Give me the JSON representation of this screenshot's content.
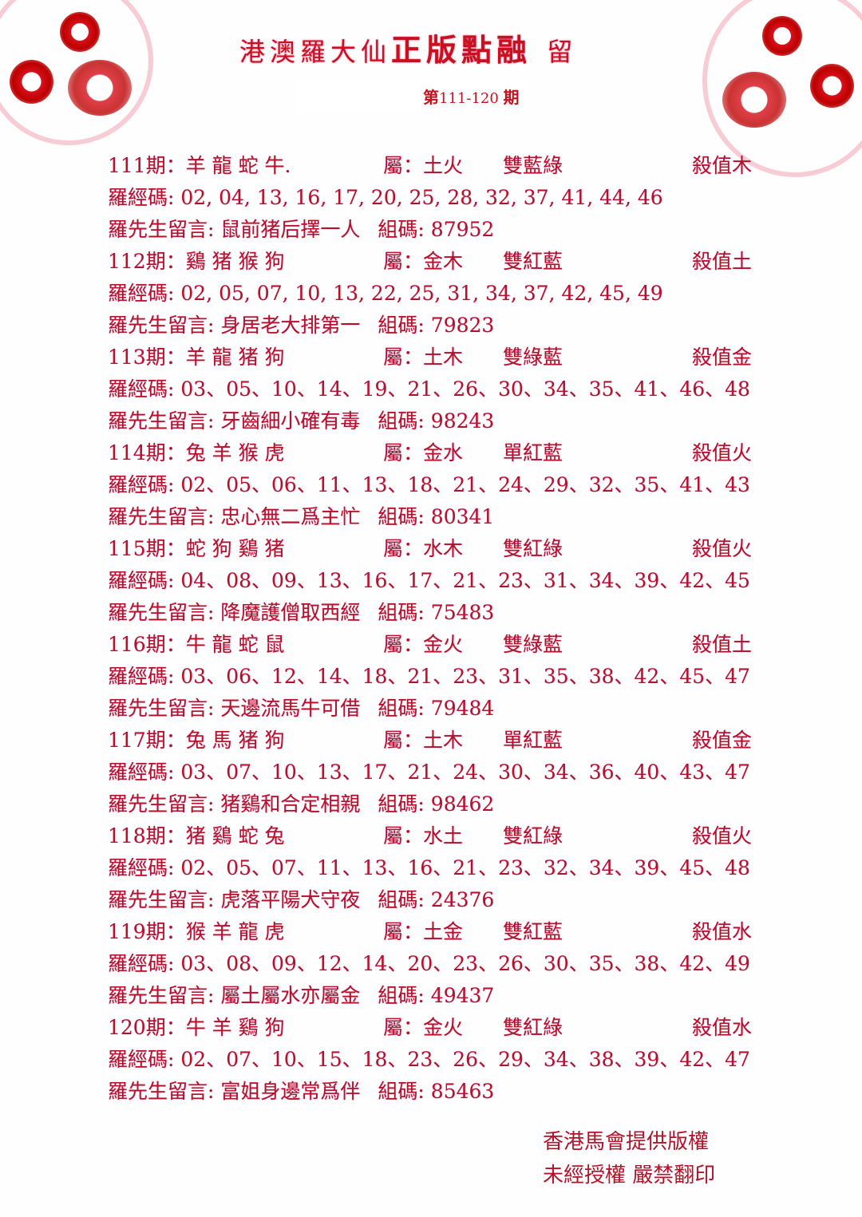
{
  "header": {
    "title_part1": "港澳羅大仙",
    "title_part2": "正版點融",
    "title_part3": "留",
    "issue_prefix": "第",
    "issue_range": "111-120",
    "issue_suffix": "期"
  },
  "labels": {
    "attr": "屬：",
    "codes": "羅經碼:",
    "message": "羅先生留言:",
    "combo": "組碼:"
  },
  "entries": [
    {
      "period": "111期：",
      "zodiacs": "羊 龍 蛇 牛.",
      "attr": "土火",
      "color": "雙藍綠",
      "kill": "殺值木",
      "codes": "02, 04, 13, 16, 17, 20, 25, 28, 32, 37, 41, 44, 46",
      "message": "鼠前猪后擇一人",
      "combo": "87952"
    },
    {
      "period": "112期：",
      "zodiacs": "鷄 猪 猴 狗",
      "attr": "金木",
      "color": "雙紅藍",
      "kill": "殺值土",
      "codes": "02, 05, 07, 10, 13, 22, 25, 31, 34, 37, 42, 45, 49",
      "message": "身居老大排第一",
      "combo": "79823"
    },
    {
      "period": "113期：",
      "zodiacs": "羊 龍 猪 狗",
      "attr": "土木",
      "color": "雙綠藍",
      "kill": "殺值金",
      "codes": "03、05、10、14、19、21、26、30、34、35、41、46、48",
      "message": "牙齒細小確有毒",
      "combo": "98243"
    },
    {
      "period": "114期：",
      "zodiacs": "兔 羊 猴 虎",
      "attr": "金水",
      "color": "單紅藍",
      "kill": "殺值火",
      "codes": "02、05、06、11、13、18、21、24、29、32、35、41、43",
      "message": "忠心無二爲主忙",
      "combo": "80341"
    },
    {
      "period": "115期：",
      "zodiacs": "蛇 狗 鷄 猪",
      "attr": "水木",
      "color": "雙紅綠",
      "kill": "殺值火",
      "codes": "04、08、09、13、16、17、21、23、31、34、39、42、45",
      "message": "降魔護僧取西經",
      "combo": "75483"
    },
    {
      "period": "116期：",
      "zodiacs": "牛 龍 蛇 鼠",
      "attr": "金火",
      "color": "雙綠藍",
      "kill": "殺值土",
      "codes": "03、06、12、14、18、21、23、31、35、38、42、45、47",
      "message": "天邊流馬牛可借",
      "combo": "79484"
    },
    {
      "period": "117期：",
      "zodiacs": "兔 馬 猪 狗",
      "attr": "土木",
      "color": "單紅藍",
      "kill": "殺值金",
      "codes": "03、07、10、13、17、21、24、30、34、36、40、43、47",
      "message": "猪鷄和合定相親",
      "combo": "98462"
    },
    {
      "period": "118期：",
      "zodiacs": "猪 鷄 蛇 兔",
      "attr": "水土",
      "color": "雙紅綠",
      "kill": "殺值火",
      "codes": "02、05、07、11、13、16、21、23、32、34、39、45、48",
      "message": "虎落平陽犬守夜",
      "combo": "24376"
    },
    {
      "period": "119期：",
      "zodiacs": "猴 羊 龍 虎",
      "attr": "土金",
      "color": "雙紅藍",
      "kill": "殺值水",
      "codes": "03、08、09、12、14、20、23、26、30、35、38、42、49",
      "message": "屬土屬水亦屬金",
      "combo": "49437"
    },
    {
      "period": "120期：",
      "zodiacs": "牛 羊 鷄 狗",
      "attr": "金火",
      "color": "雙紅綠",
      "kill": "殺值水",
      "codes": "02、07、10、15、18、23、26、29、34、38、39、42、47",
      "message": "富姐身邊常爲伴",
      "combo": "85463"
    }
  ],
  "footer": {
    "line1": "香港馬會提供版權",
    "line2": "未經授權  嚴禁翻印"
  },
  "colors": {
    "text": "#b3132a",
    "title": "#c8101e"
  }
}
